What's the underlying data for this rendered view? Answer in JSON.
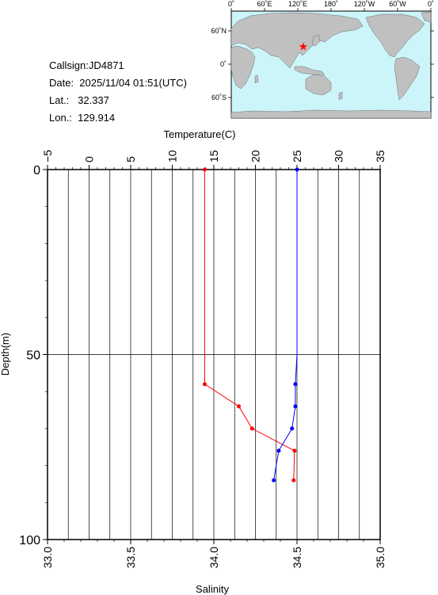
{
  "header": {
    "callsign": "Callsign:JD4871",
    "date": "Date:  2025/11/04 01:51(UTC)",
    "lat": "Lat.:   32.337",
    "lon": "Lon.:  129.914"
  },
  "map": {
    "top_ticks": [
      "0˚",
      "60˚E",
      "120˚E",
      "180˚",
      "120˚W",
      "60˚W",
      "0˚"
    ],
    "left_ticks": [
      "60˚N",
      "0˚",
      "60˚S"
    ],
    "ocean_color": "#ccf5fa",
    "land_color": "#c0c0c0",
    "marker_color": "#ff0000",
    "marker": {
      "lon": 129.914,
      "lat": 32.337
    }
  },
  "chart_data": {
    "type": "line",
    "y_axis": {
      "label": "Depth(m)",
      "range": [
        0,
        100
      ],
      "ticks": [
        "0",
        "50",
        "100"
      ],
      "inverted": true
    },
    "x_top_axis": {
      "label": "Temperature(C)",
      "range": [
        -5,
        35
      ],
      "ticks": [
        "−5",
        "0",
        "5",
        "10",
        "15",
        "20",
        "25",
        "30",
        "35"
      ]
    },
    "x_bottom_axis": {
      "label": "Salinity",
      "range": [
        33.0,
        35.0
      ],
      "ticks": [
        "33.0",
        "33.5",
        "34.0",
        "34.5",
        "35.0"
      ]
    },
    "grid": true,
    "series": [
      {
        "color": "#ff0000",
        "axis": "temperature",
        "depth": [
          0,
          58,
          64,
          70,
          76,
          84
        ],
        "values": [
          13.9,
          13.9,
          18.0,
          19.6,
          24.7,
          24.6
        ]
      },
      {
        "color": "#0000ff",
        "axis": "salinity",
        "depth": [
          0,
          30,
          50,
          58,
          64,
          70,
          76,
          84
        ],
        "values": [
          34.5,
          34.5,
          34.5,
          34.49,
          34.49,
          34.47,
          34.39,
          34.36
        ]
      }
    ]
  }
}
